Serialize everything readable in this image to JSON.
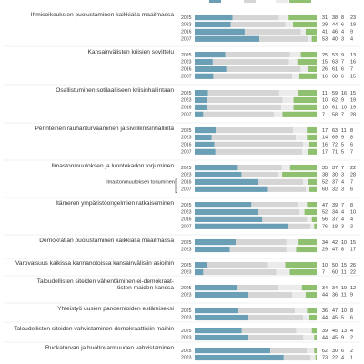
{
  "chart_data": {
    "type": "bar",
    "orientation": "horizontal",
    "stacked": true,
    "colors": [
      "#6a9fb5",
      "#d5d5d5",
      "#ebebeb",
      "#8fc06f"
    ],
    "groups": [
      {
        "label": "Ihmisoikeuksien puolustaminen kaikkialla maailmassa",
        "rows": [
          {
            "year": "2025",
            "values": [
              31,
              38,
              8,
              23
            ]
          },
          {
            "year": "2023",
            "values": [
              29,
              44,
              6,
              19
            ]
          },
          {
            "year": "2016",
            "values": [
              41,
              46,
              4,
              9
            ]
          },
          {
            "year": "2007",
            "values": [
              53,
              40,
              3,
              4
            ]
          }
        ]
      },
      {
        "label": "Kansainvälisten kriisien sovittelu",
        "rows": [
          {
            "year": "2025",
            "values": [
              25,
              53,
              9,
              13
            ]
          },
          {
            "year": "2023",
            "values": [
              15,
              63,
              7,
              16
            ]
          },
          {
            "year": "2016",
            "values": [
              26,
              61,
              6,
              7
            ]
          },
          {
            "year": "2007",
            "values": [
              16,
              68,
              6,
              15
            ]
          }
        ]
      },
      {
        "label": "Osallistuminen sotilaalliseen kriisinhallintaan",
        "rows": [
          {
            "year": "2025",
            "values": [
              11,
              59,
              16,
              15
            ]
          },
          {
            "year": "2023",
            "values": [
              10,
              62,
              9,
              19
            ]
          },
          {
            "year": "2016",
            "values": [
              10,
              61,
              10,
              19
            ]
          },
          {
            "year": "2007",
            "values": [
              7,
              58,
              7,
              28
            ]
          }
        ]
      },
      {
        "label": "Perinteinen rauhanturvaaminen ja siviilikriisinhallinta",
        "rows": [
          {
            "year": "2025",
            "values": [
              17,
              63,
              11,
              8
            ]
          },
          {
            "year": "2023",
            "values": [
              14,
              69,
              9,
              8
            ]
          },
          {
            "year": "2016",
            "values": [
              16,
              72,
              5,
              6
            ]
          },
          {
            "year": "2007",
            "values": [
              17,
              71,
              5,
              7
            ]
          }
        ]
      },
      {
        "label": "Ilmastonmuutoksen ja luontokadon torjuminen",
        "note": "Ilmastonmuutoksen torjuminen",
        "rows": [
          {
            "year": "2025",
            "values": [
              35,
              37,
              7,
              22
            ]
          },
          {
            "year": "2023",
            "values": [
              38,
              30,
              3,
              28
            ]
          },
          {
            "year": "2016",
            "values": [
              52,
              37,
              4,
              7
            ]
          },
          {
            "year": "2007",
            "values": [
              60,
              32,
              3,
              6
            ]
          }
        ]
      },
      {
        "label": "Itämeren ympäristöongelmien ratkaiseminen",
        "rows": [
          {
            "year": "2025",
            "values": [
              47,
              39,
              7,
              8
            ]
          },
          {
            "year": "2023",
            "values": [
              52,
              34,
              4,
              10
            ]
          },
          {
            "year": "2016",
            "values": [
              56,
              37,
              4,
              4
            ]
          },
          {
            "year": "2007",
            "values": [
              76,
              18,
              3,
              2
            ]
          }
        ]
      },
      {
        "label": "Demokratian puolustaminen kaikkialla maailmassa",
        "rows": [
          {
            "year": "2025",
            "values": [
              34,
              42,
              10,
              15
            ]
          },
          {
            "year": "2023",
            "values": [
              29,
              47,
              8,
              17
            ]
          }
        ]
      },
      {
        "label": "Varovaisuus kaikissa kannanotoissa kansainvälisiin asioihin",
        "rows": [
          {
            "year": "2025",
            "values": [
              10,
              50,
              15,
              26
            ]
          },
          {
            "year": "2023",
            "values": [
              7,
              60,
              11,
              22
            ]
          }
        ]
      },
      {
        "label": "Taloudellisten siteiden vähentäminen ei-demokraat-",
        "label2": "tisten maiden kanssa",
        "rows": [
          {
            "year": "2025",
            "values": [
              34,
              34,
              19,
              12
            ]
          },
          {
            "year": "2023",
            "values": [
              44,
              36,
              11,
              9
            ]
          }
        ]
      },
      {
        "label": "Yhteistyö uusien pandemioiden estämiseksi",
        "rows": [
          {
            "year": "2025",
            "values": [
              36,
              47,
              10,
              8
            ]
          },
          {
            "year": "2023",
            "values": [
              44,
              45,
              5,
              6
            ]
          }
        ]
      },
      {
        "label": "Taloudellisten siteiden vahvistaminen demokraattisiin maihin",
        "rows": [
          {
            "year": "2025",
            "values": [
              39,
              45,
              13,
              4
            ]
          },
          {
            "year": "2023",
            "values": [
              44,
              45,
              9,
              2
            ]
          }
        ]
      },
      {
        "label": "Ruokaturvan ja huoltovarmuuden vahvistaminen",
        "rows": [
          {
            "year": "2025",
            "values": [
              62,
              30,
              6,
              2
            ]
          },
          {
            "year": "2023",
            "values": [
              73,
              22,
              4,
              1
            ]
          }
        ]
      }
    ]
  }
}
